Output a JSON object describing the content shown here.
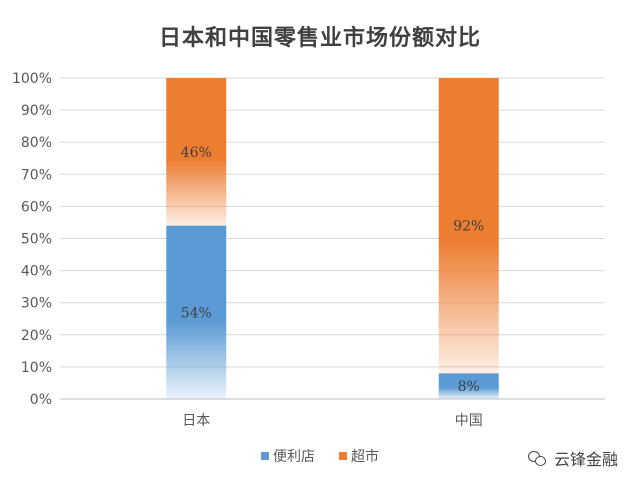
{
  "chart_data": {
    "type": "bar",
    "stacked": true,
    "title": "日本和中国零售业市场份额对比",
    "categories": [
      "日本",
      "中国"
    ],
    "series": [
      {
        "name": "便利店",
        "values": [
          54,
          8
        ],
        "labels": [
          "54%",
          "8%"
        ],
        "color": "#5b9bd5"
      },
      {
        "name": "超市",
        "values": [
          46,
          92
        ],
        "labels": [
          "46%",
          "92%"
        ],
        "color": "#ed7d31"
      }
    ],
    "ylim": [
      0,
      100
    ],
    "yticks": [
      "0%",
      "10%",
      "20%",
      "30%",
      "40%",
      "50%",
      "60%",
      "70%",
      "80%",
      "90%",
      "100%"
    ],
    "xlabel": "",
    "ylabel": "",
    "grid": true,
    "legend": "bottom"
  },
  "watermark": {
    "text": "云锋金融",
    "icon": "wechat-icon"
  }
}
